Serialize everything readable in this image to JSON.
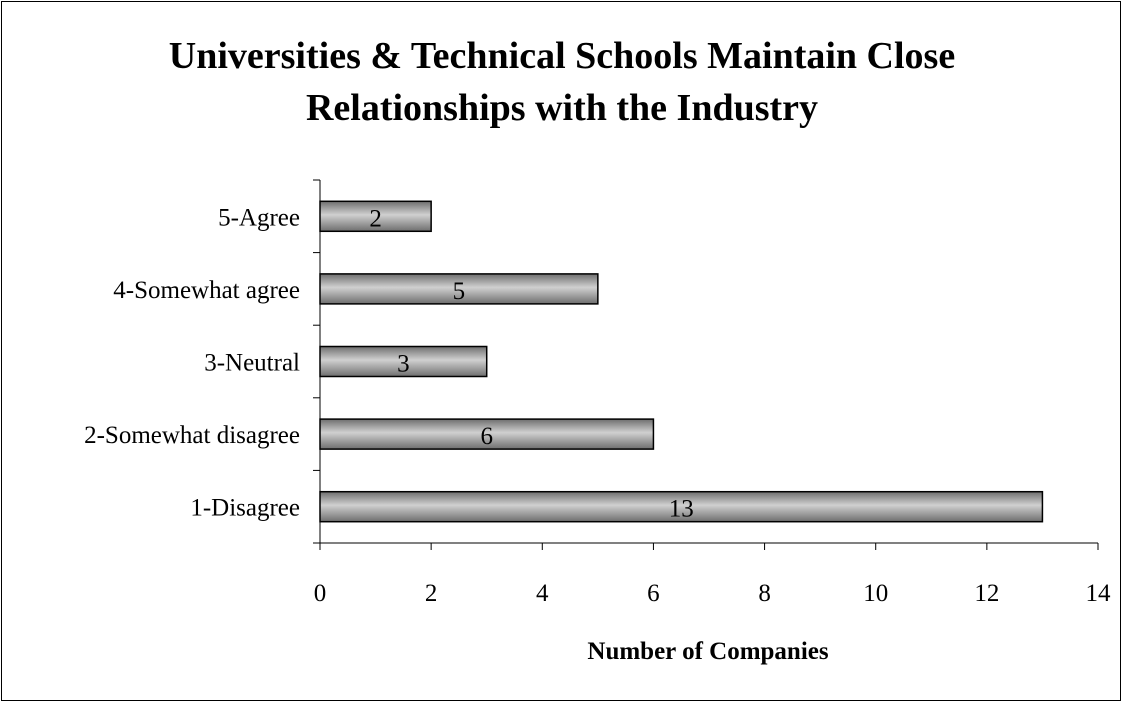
{
  "chart_data": {
    "type": "bar",
    "orientation": "horizontal",
    "title_lines": [
      "Universities & Technical Schools Maintain Close",
      "Relationships with the Industry"
    ],
    "categories": [
      "5-Agree",
      "4-Somewhat agree",
      "3-Neutral",
      "2-Somewhat disagree",
      "1-Disagree"
    ],
    "values": [
      2,
      5,
      3,
      6,
      13
    ],
    "data_labels": [
      "2",
      "5",
      "3",
      "6",
      "13"
    ],
    "xlabel": "Number of Companies",
    "ylabel": "",
    "xlim": [
      0,
      14
    ],
    "x_ticks": [
      "0",
      "2",
      "4",
      "6",
      "8",
      "10",
      "12",
      "14"
    ],
    "grid": false,
    "legend": "none",
    "colors": {
      "bar_fill_dark": "#6e6e6e",
      "bar_fill_light": "#d0d0d0",
      "bar_stroke": "#000000",
      "axis": "#000000"
    }
  }
}
